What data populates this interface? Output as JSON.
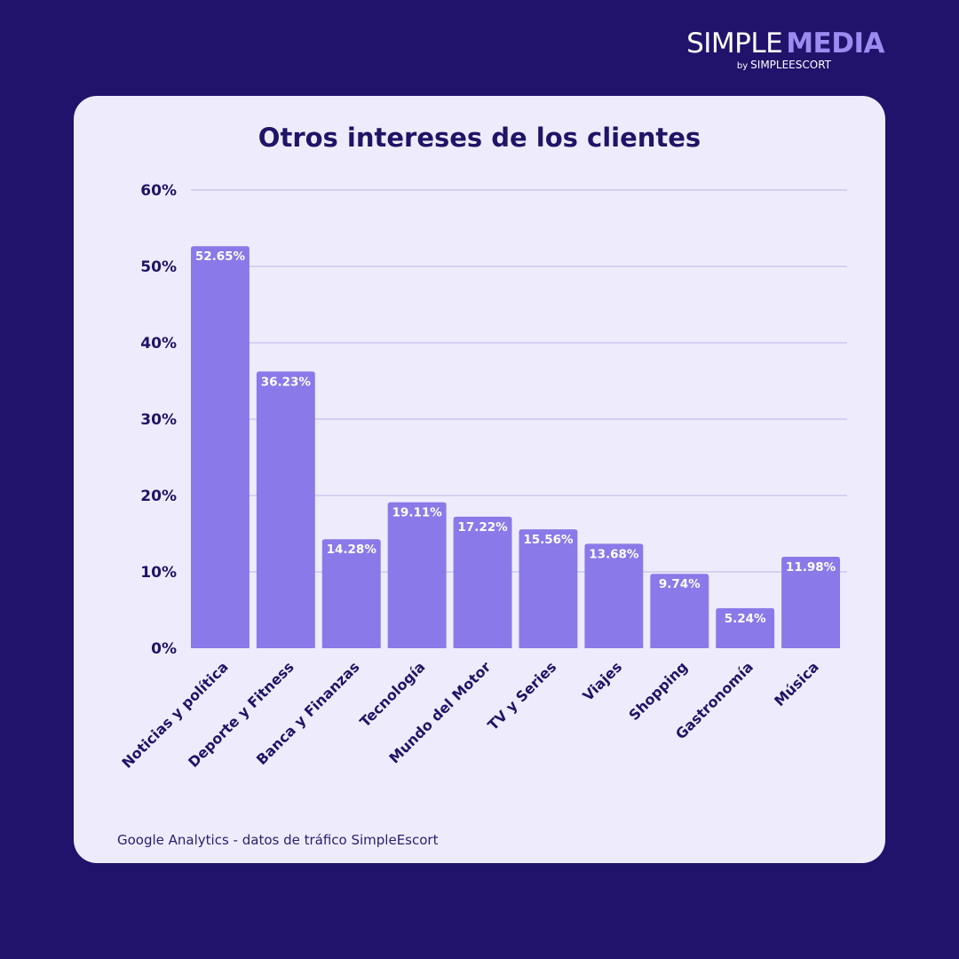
{
  "brand": {
    "name_part1": "SIMPLE",
    "name_part2": "MEDIA",
    "by_label": "by",
    "sub_name": "SIMPLEESCORT"
  },
  "source_note": "Google Analytics - datos de tráfico SimpleEscort",
  "colors": {
    "background": "#21136b",
    "card": "#eeecfc",
    "bar": "#8a79e8",
    "text": "#1f1466",
    "grid": "#b9b3e6",
    "brand_accent": "#9c8bf0"
  },
  "chart_data": {
    "type": "bar",
    "title": "Otros intereses de los clientes",
    "xlabel": "",
    "ylabel": "",
    "categories": [
      "Noticias y política",
      "Deporte y Fitness",
      "Banca y Finanzas",
      "Tecnología",
      "Mundo del Motor",
      "TV y Series",
      "Viajes",
      "Shopping",
      "Gastronomía",
      "Música"
    ],
    "values": [
      52.65,
      36.23,
      14.28,
      19.11,
      17.22,
      15.56,
      13.68,
      9.74,
      5.24,
      11.98
    ],
    "value_labels": [
      "52.65%",
      "36.23%",
      "14.28%",
      "19.11%",
      "17.22%",
      "15.56%",
      "13.68%",
      "9.74%",
      "5.24%",
      "11.98%"
    ],
    "ylim": [
      0,
      60
    ],
    "yticks": [
      0,
      10,
      20,
      30,
      40,
      50,
      60
    ],
    "ytick_labels": [
      "0%",
      "10%",
      "20%",
      "30%",
      "40%",
      "50%",
      "60%"
    ],
    "grid": true,
    "legend": "none"
  }
}
